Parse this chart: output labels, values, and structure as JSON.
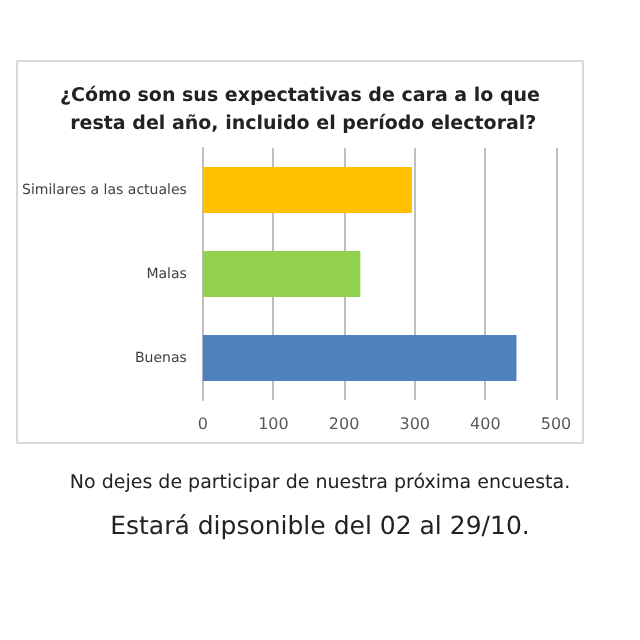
{
  "chart_data": {
    "type": "bar",
    "orientation": "horizontal",
    "title": "¿Cómo son sus expectativas de cara a lo que resta del año, incluido el período electoral?",
    "categories": [
      "Similares a las actuales",
      "Malas",
      "Buenas"
    ],
    "values": [
      296,
      223,
      444
    ],
    "colors": [
      "#ffc000",
      "#92d050",
      "#4f81bd"
    ],
    "xlim": [
      0,
      500
    ],
    "xticks": [
      0,
      100,
      200,
      300,
      400,
      500
    ],
    "grid": "x",
    "annotations": [
      "No dejes de participar de nuestra próxima encuesta.",
      "Estará dipsonible del 02 al 29/10."
    ]
  }
}
